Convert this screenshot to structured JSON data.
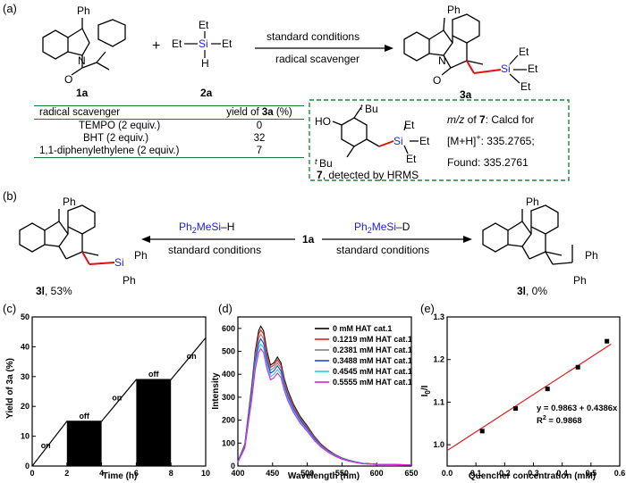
{
  "panel_a": {
    "label": "(a)",
    "ph": "Ph",
    "cpd1": "1a",
    "cpd2": "2a",
    "cpd3": "3a",
    "plus": "+",
    "arrow_top": "standard conditions",
    "arrow_bottom": "radical scavenger",
    "et": "Et",
    "si": "Si",
    "h": "H",
    "n": "N",
    "o": "O",
    "table": {
      "header_left": "radical scavenger",
      "header_right_pre": "yield of ",
      "header_right_cpd": "3a",
      "header_right_post": " (%)",
      "rows": [
        {
          "name": "TEMPO (2 equiv.)",
          "value": "0"
        },
        {
          "name": "BHT (2 equiv.)",
          "value": "32"
        },
        {
          "name": "1,1-diphenylethylene (2 equiv.)",
          "value": "7"
        }
      ]
    },
    "box": {
      "ho": "HO",
      "tbu": "Bu",
      "t": "t",
      "cpd": "7",
      "detected": ", detected by HRMS",
      "mz": "m/z",
      "of": " of ",
      "calcd": ": Calcd for",
      "mh": "[M+H]",
      "plus": "+",
      "calcd_val": ": 335.2765;",
      "found": "Found: 335.2761"
    }
  },
  "panel_b": {
    "label": "(b)",
    "center": "1a",
    "left_reagent_pre": "Ph",
    "left_reagent_sub": "2",
    "left_reagent_mid": "MeSi",
    "left_reagent_post": "–H",
    "right_reagent_post": "–D",
    "conditions": "standard conditions",
    "left_cpd": "3l",
    "left_yield": ", 53%",
    "right_cpd": "3l",
    "right_yield": ", 0%",
    "ph": "Ph"
  },
  "chart_c": {
    "label": "(c)",
    "chart_data": {
      "type": "line",
      "xlabel": "Time (h)",
      "ylabel": "Yield of 3a (%)",
      "xlim": [
        0,
        10
      ],
      "ylim": [
        0,
        50
      ],
      "xticks": [
        0,
        2,
        4,
        6,
        8,
        10
      ],
      "yticks": [
        0,
        10,
        20,
        30,
        40,
        50
      ],
      "x": [
        0,
        2,
        4,
        6,
        8,
        10
      ],
      "y": [
        0,
        15,
        15,
        29,
        29,
        43
      ],
      "bars": [
        {
          "x0": 2,
          "x1": 4,
          "y": 15,
          "label": "off"
        },
        {
          "x0": 6,
          "x1": 8,
          "y": 29,
          "label": "off"
        }
      ],
      "annotations": [
        {
          "x": 0.5,
          "y": 6,
          "text": "on"
        },
        {
          "x": 4.6,
          "y": 22,
          "text": "on"
        },
        {
          "x": 8.9,
          "y": 36,
          "text": "on"
        }
      ]
    }
  },
  "chart_d": {
    "label": "(d)",
    "chart_data": {
      "type": "line",
      "xlabel": "Wavelength (nm)",
      "ylabel": "Intensity",
      "xlim": [
        400,
        650
      ],
      "ylim": [
        0,
        650
      ],
      "xticks": [
        400,
        450,
        500,
        550,
        600,
        650
      ],
      "yticks": [
        0,
        100,
        200,
        300,
        400,
        500,
        600
      ],
      "x": [
        400,
        410,
        420,
        425,
        430,
        433,
        437,
        442,
        447,
        452,
        457,
        462,
        467,
        472,
        480,
        490,
        500,
        510,
        520,
        530,
        540,
        550,
        560,
        570,
        580,
        600,
        650
      ],
      "series": [
        {
          "name": "0 mM HAT cat.1",
          "color": "#000000",
          "values": [
            20,
            95,
            350,
            500,
            590,
            610,
            590,
            500,
            440,
            450,
            475,
            450,
            380,
            330,
            270,
            215,
            175,
            130,
            95,
            70,
            50,
            35,
            25,
            18,
            12,
            8,
            5
          ]
        },
        {
          "name": "0.1219 mM HAT cat.1",
          "color": "#e02020",
          "values": [
            19,
            92,
            340,
            488,
            575,
            593,
            575,
            488,
            430,
            440,
            463,
            440,
            372,
            323,
            264,
            210,
            171,
            127,
            93,
            68,
            49,
            34,
            24,
            17,
            12,
            8,
            5
          ]
        },
        {
          "name": "0.2381 mM HAT cat.1",
          "color": "#808080",
          "values": [
            18,
            89,
            330,
            475,
            555,
            575,
            555,
            472,
            418,
            428,
            450,
            428,
            362,
            314,
            257,
            205,
            166,
            124,
            90,
            66,
            48,
            33,
            24,
            17,
            11,
            7,
            5
          ]
        },
        {
          "name": "0.3488 mM HAT cat.1",
          "color": "#1f3fe0",
          "values": [
            18,
            86,
            320,
            458,
            535,
            555,
            535,
            458,
            405,
            415,
            437,
            415,
            352,
            305,
            250,
            199,
            162,
            120,
            88,
            64,
            46,
            32,
            23,
            16,
            11,
            7,
            5
          ]
        },
        {
          "name": "0.4545 mM HAT cat.1",
          "color": "#20d0e0",
          "values": [
            17,
            82,
            305,
            440,
            515,
            532,
            515,
            440,
            390,
            400,
            420,
            400,
            340,
            295,
            242,
            193,
            156,
            116,
            85,
            62,
            45,
            31,
            22,
            16,
            11,
            7,
            5
          ]
        },
        {
          "name": "0.5555 mM HAT cat.1",
          "color": "#e020e0",
          "values": [
            16,
            78,
            290,
            420,
            495,
            512,
            495,
            423,
            376,
            385,
            405,
            386,
            328,
            285,
            234,
            186,
            151,
            112,
            82,
            60,
            43,
            30,
            21,
            15,
            10,
            7,
            5
          ]
        }
      ],
      "legend": "top-right"
    }
  },
  "chart_e": {
    "label": "(e)",
    "chart_data": {
      "type": "scatter",
      "xlabel": "Quencher concentration (mM)",
      "ylabel_main": "I",
      "ylabel_sub": "0",
      "ylabel_post": "/I",
      "xlim": [
        0.0,
        0.6
      ],
      "ylim": [
        0.95,
        1.3
      ],
      "xticks": [
        0.0,
        0.1,
        0.2,
        0.3,
        0.4,
        0.5,
        0.6
      ],
      "yticks": [
        1.0,
        1.1,
        1.2,
        1.3
      ],
      "x": [
        0.1219,
        0.2381,
        0.3488,
        0.4545,
        0.5555
      ],
      "y": [
        1.032,
        1.085,
        1.131,
        1.182,
        1.243
      ],
      "fit": {
        "intercept": 0.9863,
        "slope": 0.4386
      },
      "equation": "y = 0.9863 + 0.4386x",
      "r2_pre": "R",
      "r2_sup": "2",
      "r2_post": " = 0.9868"
    }
  }
}
